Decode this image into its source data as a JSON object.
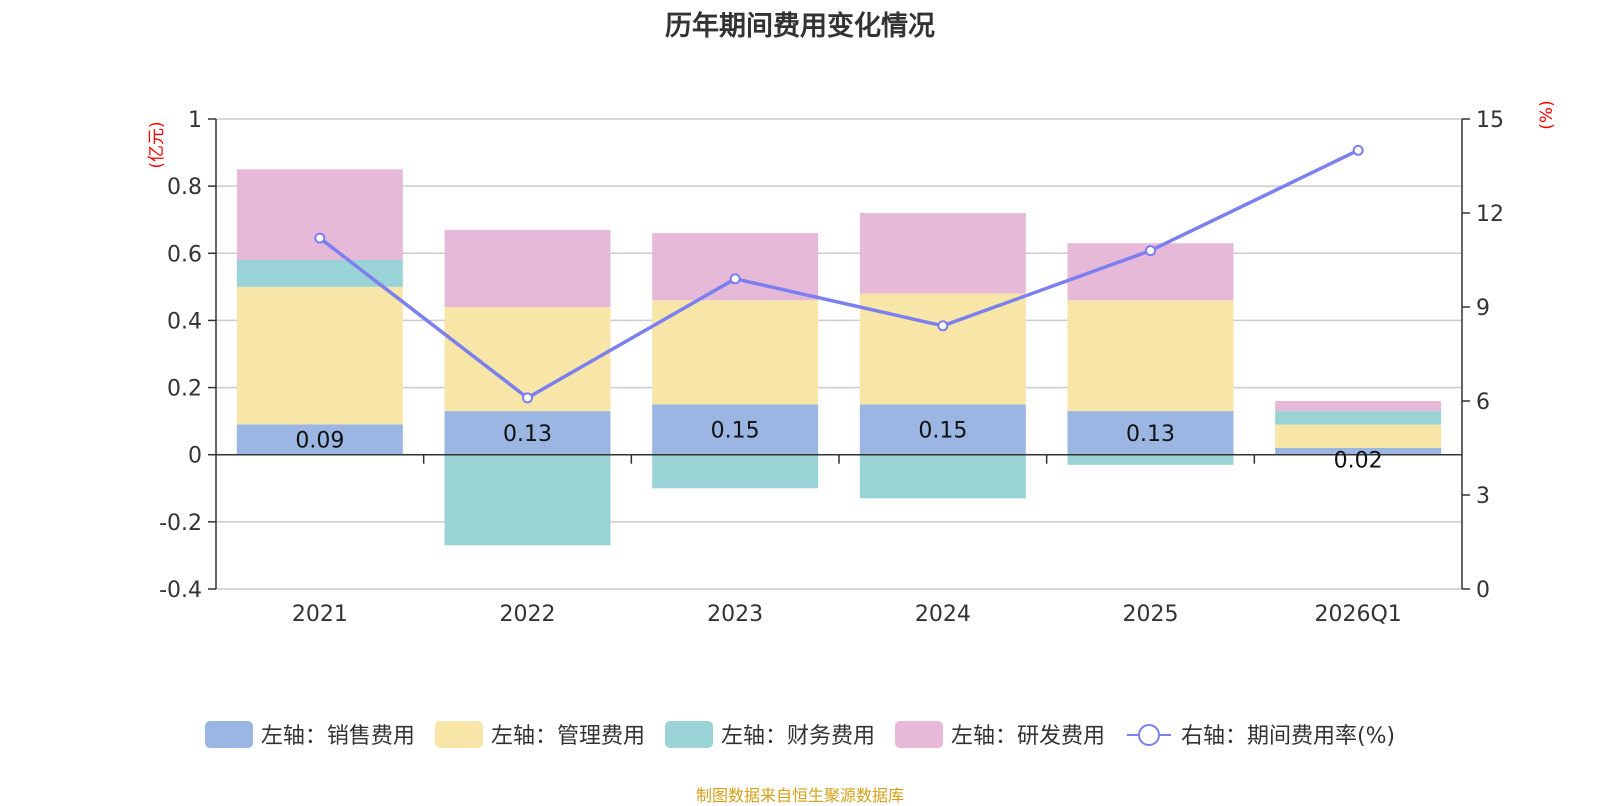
{
  "chart_data": {
    "type": "bar",
    "title": "历年期间费用变化情况",
    "categories": [
      "2021",
      "2022",
      "2023",
      "2024",
      "2025",
      "2026Q1"
    ],
    "stacked": true,
    "series": [
      {
        "name": "左轴：销售费用",
        "axis": "left",
        "color": "#9bb6e2",
        "values": [
          0.09,
          0.13,
          0.15,
          0.15,
          0.13,
          0.02
        ],
        "labels": [
          "0.09",
          "0.13",
          "0.15",
          "0.15",
          "0.13",
          "0.02"
        ]
      },
      {
        "name": "左轴：管理费用",
        "axis": "left",
        "color": "#f7e6a7",
        "values": [
          0.41,
          0.31,
          0.31,
          0.33,
          0.33,
          0.07
        ]
      },
      {
        "name": "左轴：财务费用",
        "axis": "left",
        "color": "#99d3d5",
        "values": [
          0.08,
          -0.27,
          -0.1,
          -0.13,
          -0.03,
          0.04
        ]
      },
      {
        "name": "左轴：研发费用",
        "axis": "left",
        "color": "#e7b9d9",
        "values": [
          0.27,
          0.23,
          0.2,
          0.24,
          0.17,
          0.03
        ]
      }
    ],
    "line_series": {
      "name": "右轴：期间费用率(%)",
      "axis": "right",
      "color": "#7b7ff0",
      "values": [
        11.2,
        6.1,
        9.9,
        8.4,
        10.8,
        14.0
      ]
    },
    "left_axis": {
      "label": "(亿元)",
      "ylim": [
        -0.4,
        1
      ],
      "ticks": [
        "-0.4",
        "-0.2",
        "0",
        "0.2",
        "0.4",
        "0.6",
        "0.8",
        "1"
      ]
    },
    "right_axis": {
      "label": "(%)",
      "ylim": [
        0,
        15
      ],
      "ticks": [
        "0",
        "3",
        "6",
        "9",
        "12",
        "15"
      ]
    },
    "source": "制图数据来自恒生聚源数据库"
  }
}
